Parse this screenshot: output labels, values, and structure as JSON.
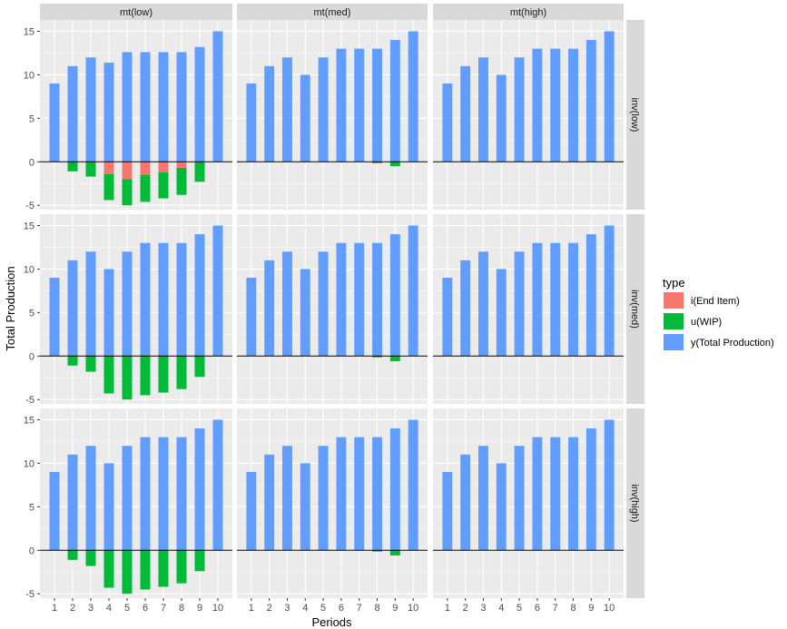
{
  "chart_data": {
    "type": "bar",
    "facet_cols": [
      "mt(low)",
      "mt(med)",
      "mt(high)"
    ],
    "facet_rows": [
      "inv(low)",
      "inv(med)",
      "inv(high)"
    ],
    "x": [
      1,
      2,
      3,
      4,
      5,
      6,
      7,
      8,
      9,
      10
    ],
    "xlabel": "Periods",
    "ylabel": "Total Production",
    "ylim": [
      -5.5,
      16.3
    ],
    "yticks": [
      -5,
      0,
      5,
      10,
      15
    ],
    "legend": {
      "title": "type",
      "position": "right",
      "entries": [
        "i(End Item)",
        "u(WIP)",
        "y(Total Production)"
      ],
      "colors": [
        "#F8766D",
        "#00BA38",
        "#619CFF"
      ]
    },
    "colors": {
      "panel_bg": "#EBEBEB",
      "strip_bg": "#D9D9D9",
      "grid": "#FFFFFF",
      "zero_line": "#000000"
    },
    "panels": [
      {
        "row": "inv(low)",
        "col": "mt(low)",
        "series": [
          {
            "name": "y(Total Production)",
            "values": [
              9,
              11,
              12,
              11.4,
              12.6,
              12.6,
              12.6,
              12.6,
              13.2,
              15
            ]
          },
          {
            "name": "i(End Item)",
            "values": [
              0,
              0,
              0,
              -1.4,
              -2.0,
              -1.5,
              -1.2,
              -0.7,
              0,
              0
            ]
          },
          {
            "name": "u(WIP)",
            "values": [
              0,
              -1.1,
              -1.7,
              -3.0,
              -3.0,
              -3.1,
              -3.0,
              -3.1,
              -2.3,
              0
            ]
          }
        ]
      },
      {
        "row": "inv(low)",
        "col": "mt(med)",
        "series": [
          {
            "name": "y(Total Production)",
            "values": [
              9,
              11,
              12,
              10,
              12,
              13,
              13,
              13,
              14,
              15
            ]
          },
          {
            "name": "i(End Item)",
            "values": [
              0,
              0,
              0,
              0,
              0,
              0,
              0,
              0,
              0,
              0
            ]
          },
          {
            "name": "u(WIP)",
            "values": [
              0,
              0,
              0,
              0,
              0,
              0,
              0,
              -0.15,
              -0.5,
              0
            ]
          }
        ]
      },
      {
        "row": "inv(low)",
        "col": "mt(high)",
        "series": [
          {
            "name": "y(Total Production)",
            "values": [
              9,
              11,
              12,
              10,
              12,
              13,
              13,
              13,
              14,
              15
            ]
          },
          {
            "name": "i(End Item)",
            "values": [
              0,
              0,
              0,
              0,
              0,
              0,
              0,
              0,
              0,
              0
            ]
          },
          {
            "name": "u(WIP)",
            "values": [
              0,
              0,
              0,
              0,
              0,
              0,
              0,
              0,
              0,
              0
            ]
          }
        ]
      },
      {
        "row": "inv(med)",
        "col": "mt(low)",
        "series": [
          {
            "name": "y(Total Production)",
            "values": [
              9,
              11,
              12,
              10,
              12,
              13,
              13,
              13,
              14,
              15
            ]
          },
          {
            "name": "i(End Item)",
            "values": [
              0,
              0,
              0,
              0,
              0,
              0,
              0,
              0,
              0,
              0
            ]
          },
          {
            "name": "u(WIP)",
            "values": [
              0,
              -1.1,
              -1.8,
              -4.3,
              -5.0,
              -4.5,
              -4.2,
              -3.8,
              -2.4,
              0
            ]
          }
        ]
      },
      {
        "row": "inv(med)",
        "col": "mt(med)",
        "series": [
          {
            "name": "y(Total Production)",
            "values": [
              9,
              11,
              12,
              10,
              12,
              13,
              13,
              13,
              14,
              15
            ]
          },
          {
            "name": "i(End Item)",
            "values": [
              0,
              0,
              0,
              0,
              0,
              0,
              0,
              0,
              0,
              0
            ]
          },
          {
            "name": "u(WIP)",
            "values": [
              0,
              0,
              0,
              0,
              0,
              0,
              0,
              -0.15,
              -0.6,
              0
            ]
          }
        ]
      },
      {
        "row": "inv(med)",
        "col": "mt(high)",
        "series": [
          {
            "name": "y(Total Production)",
            "values": [
              9,
              11,
              12,
              10,
              12,
              13,
              13,
              13,
              14,
              15
            ]
          },
          {
            "name": "i(End Item)",
            "values": [
              0,
              0,
              0,
              0,
              0,
              0,
              0,
              0,
              0,
              0
            ]
          },
          {
            "name": "u(WIP)",
            "values": [
              0,
              0,
              0,
              0,
              0,
              0,
              0,
              0,
              0,
              0
            ]
          }
        ]
      },
      {
        "row": "inv(high)",
        "col": "mt(low)",
        "series": [
          {
            "name": "y(Total Production)",
            "values": [
              9,
              11,
              12,
              10,
              12,
              13,
              13,
              13,
              14,
              15
            ]
          },
          {
            "name": "i(End Item)",
            "values": [
              0,
              0,
              0,
              0,
              0,
              0,
              0,
              0,
              0,
              0
            ]
          },
          {
            "name": "u(WIP)",
            "values": [
              0,
              -1.1,
              -1.8,
              -4.3,
              -5.0,
              -4.5,
              -4.2,
              -3.8,
              -2.4,
              0
            ]
          }
        ]
      },
      {
        "row": "inv(high)",
        "col": "mt(med)",
        "series": [
          {
            "name": "y(Total Production)",
            "values": [
              9,
              11,
              12,
              10,
              12,
              13,
              13,
              13,
              14,
              15
            ]
          },
          {
            "name": "i(End Item)",
            "values": [
              0,
              0,
              0,
              0,
              0,
              0,
              0,
              0,
              0,
              0
            ]
          },
          {
            "name": "u(WIP)",
            "values": [
              0,
              0,
              0,
              0,
              0,
              0,
              0,
              -0.15,
              -0.6,
              0
            ]
          }
        ]
      },
      {
        "row": "inv(high)",
        "col": "mt(high)",
        "series": [
          {
            "name": "y(Total Production)",
            "values": [
              9,
              11,
              12,
              10,
              12,
              13,
              13,
              13,
              14,
              15
            ]
          },
          {
            "name": "i(End Item)",
            "values": [
              0,
              0,
              0,
              0,
              0,
              0,
              0,
              0,
              0,
              0
            ]
          },
          {
            "name": "u(WIP)",
            "values": [
              0,
              0,
              0,
              0,
              0,
              0,
              0,
              0,
              0,
              0
            ]
          }
        ]
      }
    ]
  }
}
